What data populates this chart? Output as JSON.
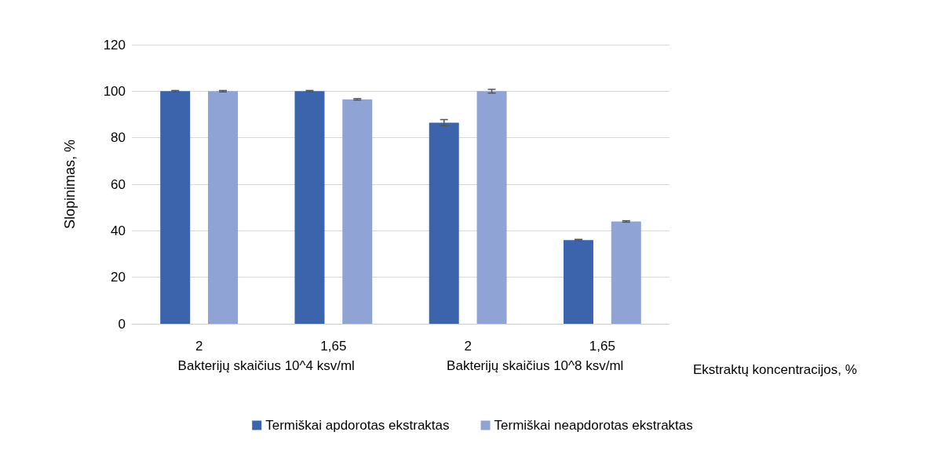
{
  "chart_data": {
    "type": "bar",
    "ylabel": "Slopinimas, %",
    "xlabel": "Ekstraktų koncentracijos, %",
    "categories": [
      "2",
      "1,65",
      "2",
      "1,65"
    ],
    "annotations": [
      "Bakterijų skaičius 10^4 ksv/ml",
      "Bakterijų skaičius 10^8 ksv/ml"
    ],
    "series": [
      {
        "name": "Termiškai apdorotas ekstraktas",
        "color": "#3c64ad",
        "values": [
          100,
          100,
          86.5,
          36
        ],
        "errors": [
          0.3,
          0.3,
          1.3,
          0.3
        ]
      },
      {
        "name": "Termiškai neapdorotas ekstraktas",
        "color": "#8fa3d4",
        "values": [
          100,
          96.5,
          100,
          44
        ],
        "errors": [
          0.3,
          0.3,
          0.8,
          0.3
        ]
      }
    ],
    "ylim": [
      0,
      120
    ],
    "yticks": [
      0,
      20,
      40,
      60,
      80,
      100,
      120
    ],
    "grid": "y",
    "legend": "bottom"
  }
}
